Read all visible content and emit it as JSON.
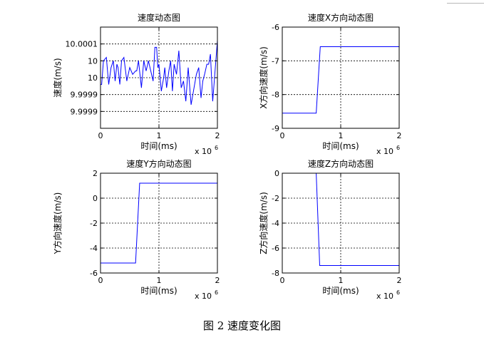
{
  "caption": "图 2  速度变化图",
  "chart_data": [
    {
      "type": "line",
      "title": "速度动态图",
      "xlabel": "时间(ms)",
      "ylabel": "速度(m/s)",
      "x_multiplier": "x 10",
      "x_multiplier_exp": "6",
      "xlim": [
        0,
        2
      ],
      "ylim": [
        9.99985,
        10.00015
      ],
      "xticks": [
        0,
        1,
        2
      ],
      "xtick_labels": [
        "0",
        "1",
        "2"
      ],
      "yticks": [
        10.0001,
        10.00005,
        10.0,
        9.99995,
        9.9999
      ],
      "ytick_labels": [
        "10.0001",
        "10",
        "10",
        "9.9999",
        "9.9999"
      ],
      "grid": true,
      "color": "#0000ff",
      "series": [
        {
          "x": [
            0,
            0.02,
            0.05,
            0.1,
            0.14,
            0.18,
            0.22,
            0.25,
            0.28,
            0.3,
            0.33,
            0.36,
            0.4,
            0.45,
            0.5,
            0.55,
            0.6,
            0.62,
            0.65,
            0.7,
            0.74,
            0.78,
            0.82,
            0.86,
            0.9,
            0.93,
            0.96,
            0.98,
            1.0,
            1.04,
            1.08,
            1.1,
            1.13,
            1.17,
            1.2,
            1.23,
            1.26,
            1.3,
            1.34,
            1.38,
            1.42,
            1.46,
            1.5,
            1.55,
            1.6,
            1.64,
            1.68,
            1.72,
            1.75,
            1.78,
            1.82,
            1.85,
            1.88,
            1.92,
            1.96,
            2.0
          ],
          "y": [
            9.99998,
            9.99998,
            10.00005,
            10.00006,
            9.99998,
            10.00003,
            10.00005,
            9.99999,
            10.00004,
            10.00003,
            9.99998,
            10.00005,
            10.00006,
            9.99999,
            10.00003,
            10.00001,
            10.00002,
            10.00002,
            10.00005,
            9.99997,
            10.00005,
            10.00002,
            10.00005,
            10.00002,
            9.99999,
            10.00009,
            10.00009,
            10.00003,
            10.00004,
            9.99996,
            10.0,
            10.00003,
            9.99997,
            10.00002,
            10.00005,
            9.99996,
            10.00004,
            10.00001,
            10.00008,
            9.99997,
            9.99999,
            9.99993,
            10.00003,
            9.99992,
            9.99997,
            10.00001,
            10.00003,
            9.99994,
            9.99999,
            10.00001,
            10.00004,
            10.00004,
            10.00007,
            9.99993,
            10.00002,
            10.00011
          ]
        }
      ]
    },
    {
      "type": "line",
      "title": "速度X方向动态图",
      "xlabel": "时间(ms)",
      "ylabel": "X方向速度(m/s)",
      "x_multiplier": "x 10",
      "x_multiplier_exp": "6",
      "xlim": [
        0,
        2
      ],
      "ylim": [
        -9,
        -6
      ],
      "xticks": [
        0,
        1,
        2
      ],
      "xtick_labels": [
        "0",
        "1",
        "2"
      ],
      "yticks": [
        -6,
        -7,
        -8,
        -9
      ],
      "ytick_labels": [
        "-6",
        "-7",
        "-8",
        "-9"
      ],
      "grid": true,
      "color": "#0000ff",
      "series": [
        {
          "x": [
            0,
            0.58,
            0.65,
            2.0
          ],
          "y": [
            -8.55,
            -8.55,
            -6.58,
            -6.58
          ]
        }
      ]
    },
    {
      "type": "line",
      "title": "速度Y方向动态图",
      "xlabel": "时间(ms)",
      "ylabel": "Y方向速度(m/s)",
      "x_multiplier": "x 10",
      "x_multiplier_exp": "6",
      "xlim": [
        0,
        2
      ],
      "ylim": [
        -6,
        2
      ],
      "xticks": [
        0,
        1,
        2
      ],
      "xtick_labels": [
        "0",
        "1",
        "2"
      ],
      "yticks": [
        2,
        0,
        -2,
        -4,
        -6
      ],
      "ytick_labels": [
        "2",
        "0",
        "-2",
        "-4",
        "-6"
      ],
      "grid": true,
      "color": "#0000ff",
      "series": [
        {
          "x": [
            0,
            0.6,
            0.67,
            2.0
          ],
          "y": [
            -5.2,
            -5.2,
            1.2,
            1.2
          ]
        }
      ]
    },
    {
      "type": "line",
      "title": "速度Z方向动态图",
      "xlabel": "时间(ms)",
      "ylabel": "Z方向速度(m/s)",
      "x_multiplier": "x 10",
      "x_multiplier_exp": "6",
      "xlim": [
        0,
        2
      ],
      "ylim": [
        -8,
        0
      ],
      "xticks": [
        0,
        1,
        2
      ],
      "xtick_labels": [
        "0",
        "1",
        "2"
      ],
      "yticks": [
        0,
        -2,
        -4,
        -6,
        -8
      ],
      "ytick_labels": [
        "0",
        "-2",
        "-4",
        "-6",
        "-8"
      ],
      "grid": true,
      "color": "#0000ff",
      "series": [
        {
          "x": [
            0,
            0.58,
            0.64,
            2.0
          ],
          "y": [
            0,
            0,
            -7.4,
            -7.4
          ]
        }
      ]
    }
  ]
}
